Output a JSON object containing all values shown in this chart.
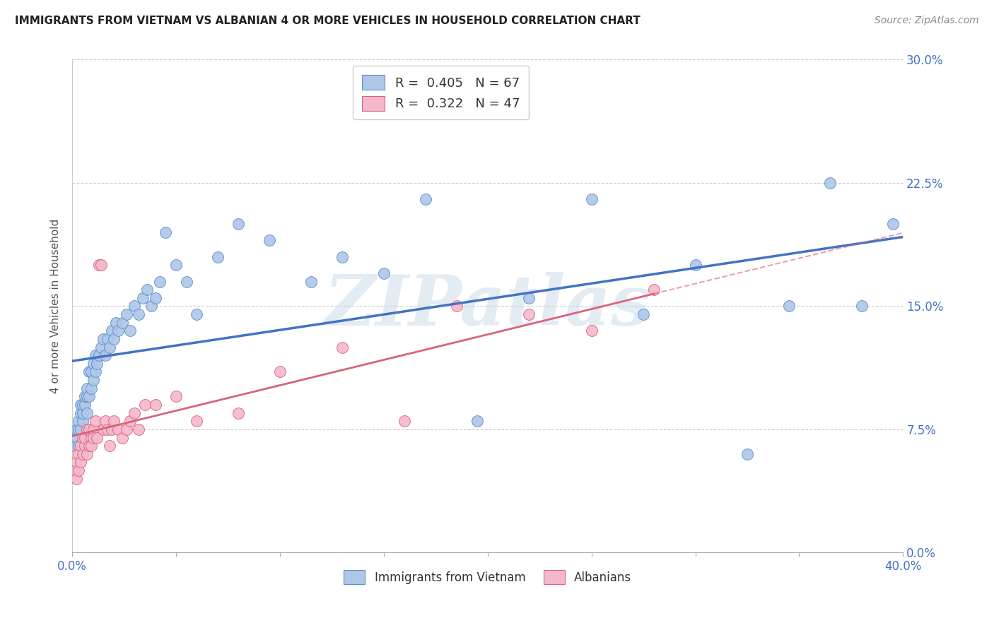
{
  "title": "IMMIGRANTS FROM VIETNAM VS ALBANIAN 4 OR MORE VEHICLES IN HOUSEHOLD CORRELATION CHART",
  "source": "Source: ZipAtlas.com",
  "ylabel": "4 or more Vehicles in Household",
  "legend_label1": "Immigrants from Vietnam",
  "legend_label2": "Albanians",
  "R1": "0.405",
  "N1": "67",
  "R2": "0.322",
  "N2": "47",
  "color_vietnam_fill": "#aec6e8",
  "color_vietnam_edge": "#5b8fc9",
  "color_albanian_fill": "#f4b8cc",
  "color_albanian_edge": "#d9637a",
  "color_line_vietnam": "#4472c4",
  "color_line_albanian": "#d9637a",
  "background_color": "#ffffff",
  "watermark": "ZIPatlas",
  "xlim": [
    0.0,
    0.4
  ],
  "ylim": [
    0.0,
    0.3
  ],
  "xtick_vals": [
    0.0,
    0.05,
    0.1,
    0.15,
    0.2,
    0.25,
    0.3,
    0.35,
    0.4
  ],
  "ytick_vals": [
    0.0,
    0.075,
    0.15,
    0.225,
    0.3
  ],
  "ytick_labels": [
    "0.0%",
    "7.5%",
    "15.0%",
    "22.5%",
    "30.0%"
  ],
  "vietnam_x": [
    0.001,
    0.002,
    0.002,
    0.003,
    0.003,
    0.003,
    0.004,
    0.004,
    0.004,
    0.005,
    0.005,
    0.005,
    0.006,
    0.006,
    0.007,
    0.007,
    0.007,
    0.008,
    0.008,
    0.009,
    0.009,
    0.01,
    0.01,
    0.011,
    0.011,
    0.012,
    0.013,
    0.014,
    0.015,
    0.016,
    0.017,
    0.018,
    0.019,
    0.02,
    0.021,
    0.022,
    0.024,
    0.026,
    0.028,
    0.03,
    0.032,
    0.034,
    0.036,
    0.038,
    0.04,
    0.042,
    0.045,
    0.05,
    0.055,
    0.06,
    0.07,
    0.08,
    0.095,
    0.115,
    0.13,
    0.15,
    0.17,
    0.195,
    0.22,
    0.25,
    0.275,
    0.3,
    0.325,
    0.345,
    0.365,
    0.38,
    0.395
  ],
  "vietnam_y": [
    0.065,
    0.07,
    0.075,
    0.065,
    0.075,
    0.08,
    0.075,
    0.085,
    0.09,
    0.08,
    0.085,
    0.09,
    0.09,
    0.095,
    0.085,
    0.095,
    0.1,
    0.095,
    0.11,
    0.1,
    0.11,
    0.105,
    0.115,
    0.11,
    0.12,
    0.115,
    0.12,
    0.125,
    0.13,
    0.12,
    0.13,
    0.125,
    0.135,
    0.13,
    0.14,
    0.135,
    0.14,
    0.145,
    0.135,
    0.15,
    0.145,
    0.155,
    0.16,
    0.15,
    0.155,
    0.165,
    0.195,
    0.175,
    0.165,
    0.145,
    0.18,
    0.2,
    0.19,
    0.165,
    0.18,
    0.17,
    0.215,
    0.08,
    0.155,
    0.215,
    0.145,
    0.175,
    0.06,
    0.15,
    0.225,
    0.15,
    0.2
  ],
  "albanian_x": [
    0.001,
    0.002,
    0.002,
    0.003,
    0.003,
    0.004,
    0.004,
    0.005,
    0.005,
    0.006,
    0.006,
    0.007,
    0.007,
    0.008,
    0.008,
    0.009,
    0.009,
    0.01,
    0.01,
    0.011,
    0.012,
    0.013,
    0.014,
    0.015,
    0.016,
    0.017,
    0.018,
    0.019,
    0.02,
    0.022,
    0.024,
    0.026,
    0.028,
    0.03,
    0.032,
    0.035,
    0.04,
    0.05,
    0.06,
    0.08,
    0.1,
    0.13,
    0.16,
    0.185,
    0.22,
    0.25,
    0.28
  ],
  "albanian_y": [
    0.05,
    0.045,
    0.055,
    0.05,
    0.06,
    0.055,
    0.065,
    0.06,
    0.07,
    0.065,
    0.07,
    0.06,
    0.075,
    0.065,
    0.075,
    0.07,
    0.065,
    0.075,
    0.07,
    0.08,
    0.07,
    0.175,
    0.175,
    0.075,
    0.08,
    0.075,
    0.065,
    0.075,
    0.08,
    0.075,
    0.07,
    0.075,
    0.08,
    0.085,
    0.075,
    0.09,
    0.09,
    0.095,
    0.08,
    0.085,
    0.11,
    0.125,
    0.08,
    0.15,
    0.145,
    0.135,
    0.16
  ]
}
